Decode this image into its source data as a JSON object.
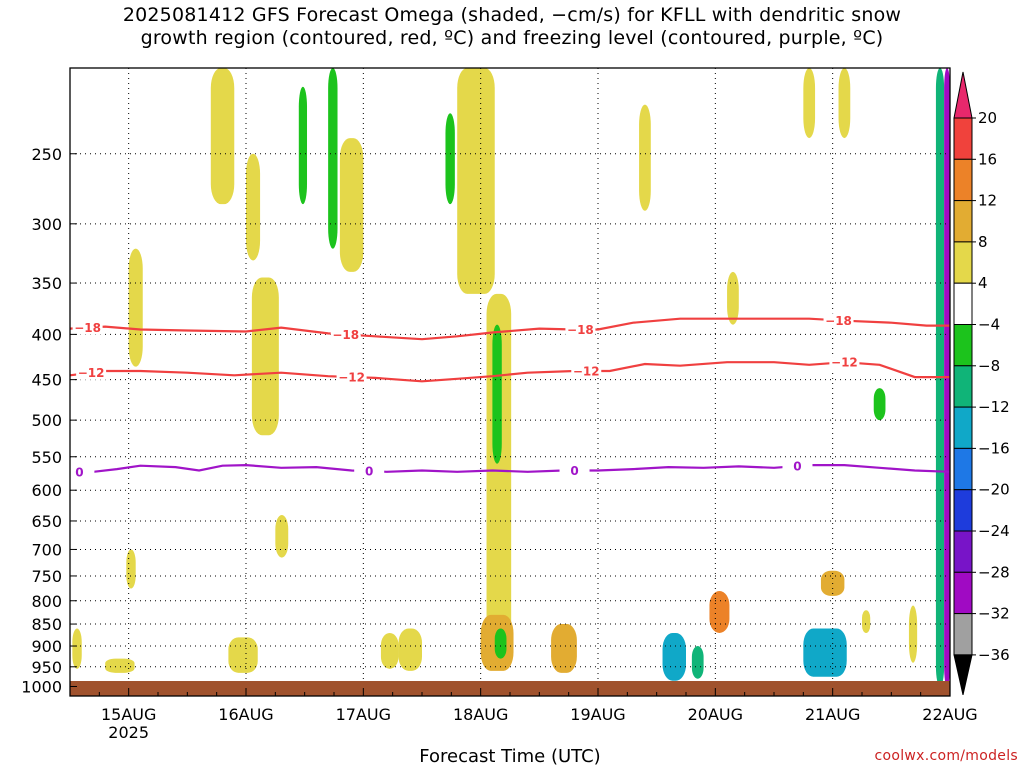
{
  "title": {
    "line1": "2025081412 GFS Forecast Omega (shaded, −cm/s) for KFLL with dendritic snow",
    "line2": "growth region (contoured, red, ºC) and freezing level (contoured, purple, ºC)"
  },
  "credit": "coolwx.com/models",
  "chart_data": {
    "type": "heatmap",
    "title": "2025081412 GFS Forecast Omega (shaded, −cm/s) for KFLL with dendritic snow growth region (contoured, red, ºC) and freezing level (contoured, purple, ºC)",
    "xlabel": "Forecast Time (UTC)",
    "ylabel": "",
    "x_ticks": [
      {
        "label": "15AUG",
        "sublabel": "2025",
        "t": 0.5
      },
      {
        "label": "16AUG",
        "sublabel": "",
        "t": 1.5
      },
      {
        "label": "17AUG",
        "sublabel": "",
        "t": 2.5
      },
      {
        "label": "18AUG",
        "sublabel": "",
        "t": 3.5
      },
      {
        "label": "19AUG",
        "sublabel": "",
        "t": 4.5
      },
      {
        "label": "20AUG",
        "sublabel": "",
        "t": 5.5
      },
      {
        "label": "21AUG",
        "sublabel": "",
        "t": 6.5
      },
      {
        "label": "22AUG",
        "sublabel": "",
        "t": 7.5
      }
    ],
    "x_range_days": [
      0,
      7.5
    ],
    "y_ticks": [
      250,
      300,
      350,
      400,
      450,
      500,
      550,
      600,
      650,
      700,
      750,
      800,
      850,
      900,
      950,
      1000
    ],
    "y_range_hpa": [
      200,
      1025
    ],
    "grid": true,
    "colorbar": {
      "labels": [
        "20",
        "16",
        "12",
        "8",
        "4",
        "−4",
        "−8",
        "−12",
        "−16",
        "−20",
        "−24",
        "−28",
        "−32",
        "−36"
      ],
      "colors": [
        "#e8286c",
        "#f0423c",
        "#ec8228",
        "#e2ac32",
        "#e4d84a",
        "#ffffff",
        "#1cc31c",
        "#10b478",
        "#10a8c8",
        "#1e78e6",
        "#1e3cdc",
        "#7814c8",
        "#a00ac3",
        "#a0a0a0",
        "#000000"
      ]
    },
    "series": [
      {
        "name": "-18",
        "color": "#f04040",
        "unit": "ºC",
        "x": [
          0.0,
          0.3,
          0.6,
          1.0,
          1.5,
          1.8,
          2.2,
          2.6,
          3.0,
          3.3,
          3.6,
          4.0,
          4.3,
          4.5,
          4.8,
          5.2,
          5.6,
          6.0,
          6.3,
          6.6,
          7.0,
          7.3,
          7.5
        ],
        "y": [
          394,
          392,
          395,
          396,
          397,
          393,
          399,
          402,
          405,
          402,
          398,
          394,
          395,
          395,
          388,
          384,
          384,
          384,
          384,
          386,
          388,
          391,
          391
        ],
        "labels": [
          {
            "t": 0.15,
            "text": "−18"
          },
          {
            "t": 2.35,
            "text": "−18"
          },
          {
            "t": 4.35,
            "text": "−18"
          },
          {
            "t": 6.55,
            "text": "−18"
          }
        ]
      },
      {
        "name": "-12",
        "color": "#f04040",
        "unit": "ºC",
        "x": [
          0.0,
          0.3,
          0.6,
          1.0,
          1.4,
          1.8,
          2.2,
          2.6,
          3.0,
          3.3,
          3.6,
          3.9,
          4.3,
          4.6,
          4.9,
          5.2,
          5.6,
          6.0,
          6.3,
          6.6,
          6.9,
          7.2,
          7.5
        ],
        "y": [
          445,
          440,
          440,
          442,
          445,
          442,
          446,
          448,
          452,
          449,
          446,
          442,
          440,
          440,
          432,
          434,
          430,
          430,
          433,
          430,
          433,
          447,
          447
        ],
        "labels": [
          {
            "t": 0.18,
            "text": "−12"
          },
          {
            "t": 2.4,
            "text": "−12"
          },
          {
            "t": 4.4,
            "text": "−12"
          },
          {
            "t": 6.6,
            "text": "−12"
          }
        ]
      },
      {
        "name": "0",
        "color": "#a014c8",
        "unit": "ºC",
        "x": [
          0.0,
          0.2,
          0.4,
          0.6,
          0.9,
          1.1,
          1.3,
          1.5,
          1.8,
          2.1,
          2.4,
          2.7,
          3.0,
          3.3,
          3.6,
          3.9,
          4.2,
          4.5,
          4.8,
          5.1,
          5.4,
          5.7,
          6.0,
          6.3,
          6.6,
          6.9,
          7.2,
          7.5
        ],
        "y": [
          573,
          572,
          568,
          563,
          565,
          570,
          563,
          562,
          566,
          565,
          570,
          572,
          570,
          572,
          570,
          572,
          570,
          570,
          568,
          565,
          566,
          564,
          566,
          562,
          562,
          566,
          570,
          572
        ],
        "labels": [
          {
            "t": 0.08,
            "text": "0"
          },
          {
            "t": 2.55,
            "text": "0"
          },
          {
            "t": 4.3,
            "text": "0"
          },
          {
            "t": 6.2,
            "text": "0"
          }
        ]
      }
    ],
    "shaded_regions": [
      {
        "t0": 0.02,
        "t1": 0.1,
        "p0": 860,
        "p1": 955,
        "value": 6
      },
      {
        "t0": 0.3,
        "t1": 0.55,
        "p0": 930,
        "p1": 965,
        "value": 6
      },
      {
        "t0": 0.5,
        "t1": 0.62,
        "p0": 320,
        "p1": 435,
        "value": 6
      },
      {
        "t0": 0.48,
        "t1": 0.56,
        "p0": 700,
        "p1": 775,
        "value": 6
      },
      {
        "t0": 1.2,
        "t1": 1.4,
        "p0": 200,
        "p1": 285,
        "value": 6
      },
      {
        "t0": 1.35,
        "t1": 1.6,
        "p0": 880,
        "p1": 965,
        "value": 6
      },
      {
        "t0": 1.5,
        "t1": 1.62,
        "p0": 250,
        "p1": 330,
        "value": 6
      },
      {
        "t0": 1.55,
        "t1": 1.78,
        "p0": 345,
        "p1": 520,
        "value": 5
      },
      {
        "t0": 1.75,
        "t1": 1.86,
        "p0": 640,
        "p1": 715,
        "value": 6
      },
      {
        "t0": 2.3,
        "t1": 2.5,
        "p0": 240,
        "p1": 340,
        "value": 6
      },
      {
        "t0": 2.65,
        "t1": 2.8,
        "p0": 870,
        "p1": 955,
        "value": 6
      },
      {
        "t0": 2.8,
        "t1": 3.0,
        "p0": 860,
        "p1": 960,
        "value": 7
      },
      {
        "t0": 3.3,
        "t1": 3.62,
        "p0": 200,
        "p1": 360,
        "value": 6
      },
      {
        "t0": 3.55,
        "t1": 3.76,
        "p0": 360,
        "p1": 900,
        "value": 6
      },
      {
        "t0": 3.5,
        "t1": 3.78,
        "p0": 830,
        "p1": 960,
        "value": 9
      },
      {
        "t0": 4.1,
        "t1": 4.32,
        "p0": 850,
        "p1": 965,
        "value": 9
      },
      {
        "t0": 4.85,
        "t1": 4.95,
        "p0": 220,
        "p1": 290,
        "value": 6
      },
      {
        "t0": 5.45,
        "t1": 5.62,
        "p0": 780,
        "p1": 870,
        "value": 12
      },
      {
        "t0": 5.6,
        "t1": 5.7,
        "p0": 340,
        "p1": 390,
        "value": 6
      },
      {
        "t0": 6.25,
        "t1": 6.35,
        "p0": 200,
        "p1": 240,
        "value": 6
      },
      {
        "t0": 6.4,
        "t1": 6.6,
        "p0": 740,
        "p1": 790,
        "value": 10
      },
      {
        "t0": 6.55,
        "t1": 6.65,
        "p0": 200,
        "p1": 240,
        "value": 6
      },
      {
        "t0": 6.75,
        "t1": 6.82,
        "p0": 820,
        "p1": 870,
        "value": 6
      },
      {
        "t0": 7.15,
        "t1": 7.22,
        "p0": 810,
        "p1": 940,
        "value": 6
      },
      {
        "t0": 5.05,
        "t1": 5.25,
        "p0": 870,
        "p1": 985,
        "value": -14
      },
      {
        "t0": 5.3,
        "t1": 5.4,
        "p0": 900,
        "p1": 980,
        "value": -9
      },
      {
        "t0": 6.25,
        "t1": 6.62,
        "p0": 860,
        "p1": 975,
        "value": -15
      },
      {
        "t0": 6.85,
        "t1": 6.95,
        "p0": 460,
        "p1": 500,
        "value": -7
      },
      {
        "t0": 1.95,
        "t1": 2.02,
        "p0": 210,
        "p1": 285,
        "value": -7
      },
      {
        "t0": 2.2,
        "t1": 2.28,
        "p0": 200,
        "p1": 320,
        "value": -7
      },
      {
        "t0": 3.2,
        "t1": 3.28,
        "p0": 225,
        "p1": 285,
        "value": -7
      },
      {
        "t0": 3.6,
        "t1": 3.68,
        "p0": 390,
        "p1": 560,
        "value": -7
      },
      {
        "t0": 3.62,
        "t1": 3.72,
        "p0": 860,
        "p1": 930,
        "value": -7
      },
      {
        "t0": 7.38,
        "t1": 7.45,
        "p0": 200,
        "p1": 1000,
        "value": -8
      },
      {
        "t0": 7.45,
        "t1": 7.5,
        "p0": 200,
        "p1": 1000,
        "value": -30
      }
    ]
  }
}
